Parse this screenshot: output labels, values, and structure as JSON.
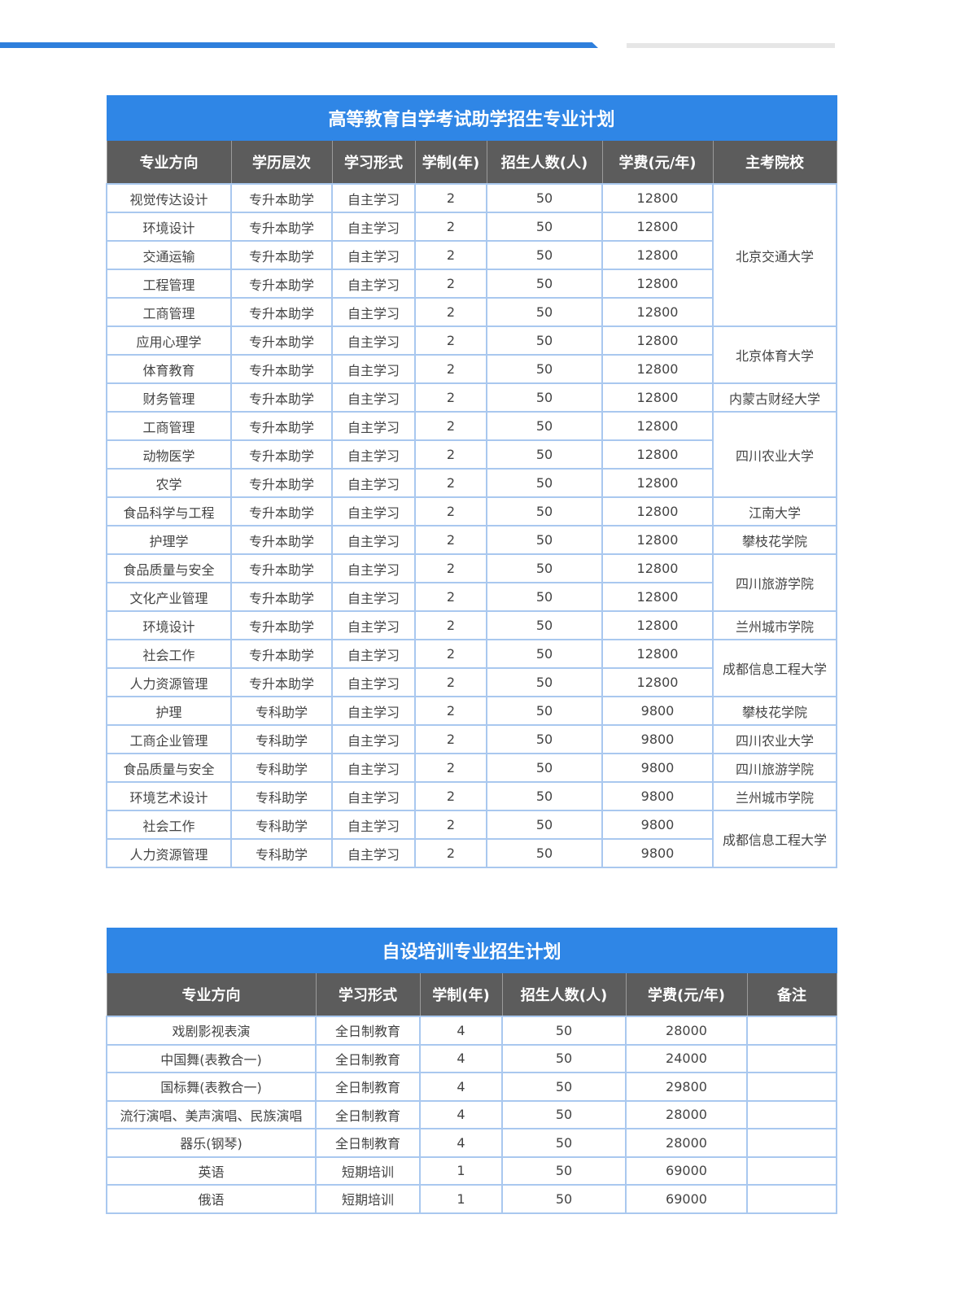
{
  "accent": "#2f86e6",
  "header_bg": "#5c5c5c",
  "table1": {
    "title": "高等教育自学考试助学招生专业计划",
    "headers": [
      "专业方向",
      "学历层次",
      "学习形式",
      "学制(年)",
      "招生人数(人)",
      "学费(元/年)",
      "主考院校"
    ],
    "rows": [
      [
        "视觉传达设计",
        "专升本助学",
        "自主学习",
        "2",
        "50",
        "12800"
      ],
      [
        "环境设计",
        "专升本助学",
        "自主学习",
        "2",
        "50",
        "12800"
      ],
      [
        "交通运输",
        "专升本助学",
        "自主学习",
        "2",
        "50",
        "12800"
      ],
      [
        "工程管理",
        "专升本助学",
        "自主学习",
        "2",
        "50",
        "12800"
      ],
      [
        "工商管理",
        "专升本助学",
        "自主学习",
        "2",
        "50",
        "12800"
      ],
      [
        "应用心理学",
        "专升本助学",
        "自主学习",
        "2",
        "50",
        "12800"
      ],
      [
        "体育教育",
        "专升本助学",
        "自主学习",
        "2",
        "50",
        "12800"
      ],
      [
        "财务管理",
        "专升本助学",
        "自主学习",
        "2",
        "50",
        "12800"
      ],
      [
        "工商管理",
        "专升本助学",
        "自主学习",
        "2",
        "50",
        "12800"
      ],
      [
        "动物医学",
        "专升本助学",
        "自主学习",
        "2",
        "50",
        "12800"
      ],
      [
        "农学",
        "专升本助学",
        "自主学习",
        "2",
        "50",
        "12800"
      ],
      [
        "食品科学与工程",
        "专升本助学",
        "自主学习",
        "2",
        "50",
        "12800"
      ],
      [
        "护理学",
        "专升本助学",
        "自主学习",
        "2",
        "50",
        "12800"
      ],
      [
        "食品质量与安全",
        "专升本助学",
        "自主学习",
        "2",
        "50",
        "12800"
      ],
      [
        "文化产业管理",
        "专升本助学",
        "自主学习",
        "2",
        "50",
        "12800"
      ],
      [
        "环境设计",
        "专升本助学",
        "自主学习",
        "2",
        "50",
        "12800"
      ],
      [
        "社会工作",
        "专升本助学",
        "自主学习",
        "2",
        "50",
        "12800"
      ],
      [
        "人力资源管理",
        "专升本助学",
        "自主学习",
        "2",
        "50",
        "12800"
      ],
      [
        "护理",
        "专科助学",
        "自主学习",
        "2",
        "50",
        "9800"
      ],
      [
        "工商企业管理",
        "专科助学",
        "自主学习",
        "2",
        "50",
        "9800"
      ],
      [
        "食品质量与安全",
        "专科助学",
        "自主学习",
        "2",
        "50",
        "9800"
      ],
      [
        "环境艺术设计",
        "专科助学",
        "自主学习",
        "2",
        "50",
        "9800"
      ],
      [
        "社会工作",
        "专科助学",
        "自主学习",
        "2",
        "50",
        "9800"
      ],
      [
        "人力资源管理",
        "专科助学",
        "自主学习",
        "2",
        "50",
        "9800"
      ]
    ],
    "schools": [
      {
        "name": "北京交通大学",
        "span": 5
      },
      {
        "name": "北京体育大学",
        "span": 2
      },
      {
        "name": "内蒙古财经大学",
        "span": 1
      },
      {
        "name": "四川农业大学",
        "span": 3
      },
      {
        "name": "江南大学",
        "span": 1
      },
      {
        "name": "攀枝花学院",
        "span": 1
      },
      {
        "name": "四川旅游学院",
        "span": 2
      },
      {
        "name": "兰州城市学院",
        "span": 1
      },
      {
        "name": "成都信息工程大学",
        "span": 2
      },
      {
        "name": "攀枝花学院",
        "span": 1
      },
      {
        "name": "四川农业大学",
        "span": 1
      },
      {
        "name": "四川旅游学院",
        "span": 1
      },
      {
        "name": "兰州城市学院",
        "span": 1
      },
      {
        "name": "成都信息工程大学",
        "span": 2
      }
    ]
  },
  "table2": {
    "title": "自设培训专业招生计划",
    "headers": [
      "专业方向",
      "学习形式",
      "学制(年)",
      "招生人数(人)",
      "学费(元/年)",
      "备注"
    ],
    "rows": [
      [
        "戏剧影视表演",
        "全日制教育",
        "4",
        "50",
        "28000",
        ""
      ],
      [
        "中国舞(表教合一)",
        "全日制教育",
        "4",
        "50",
        "24000",
        ""
      ],
      [
        "国标舞(表教合一)",
        "全日制教育",
        "4",
        "50",
        "29800",
        ""
      ],
      [
        "流行演唱、美声演唱、民族演唱",
        "全日制教育",
        "4",
        "50",
        "28000",
        ""
      ],
      [
        "器乐(钢琴)",
        "全日制教育",
        "4",
        "50",
        "28000",
        ""
      ],
      [
        "英语",
        "短期培训",
        "1",
        "50",
        "69000",
        ""
      ],
      [
        "俄语",
        "短期培训",
        "1",
        "50",
        "69000",
        ""
      ]
    ]
  }
}
